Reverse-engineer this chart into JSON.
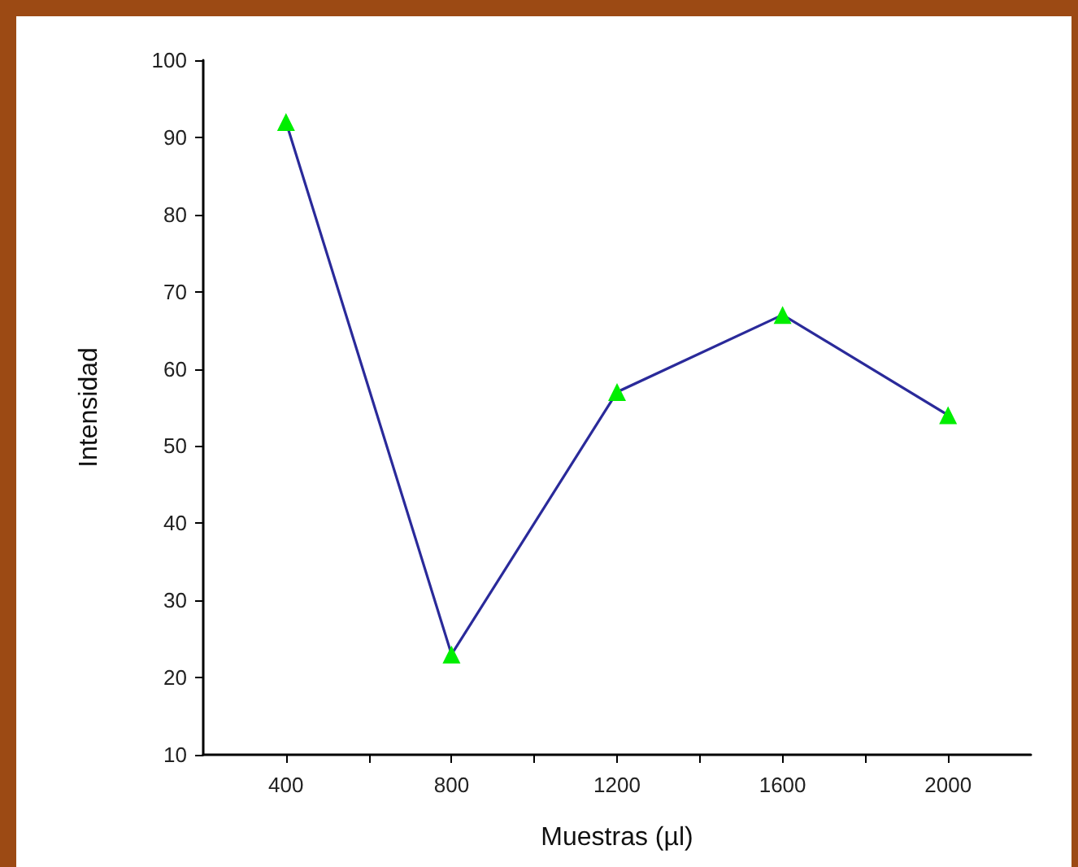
{
  "chart_data": {
    "type": "line",
    "xlabel": "Muestras (µl)",
    "ylabel": "Intensidad",
    "x": [
      400,
      800,
      1200,
      1600,
      2000
    ],
    "series": [
      {
        "color": "#2a2a9a",
        "colors": [
          "#00ee00",
          "#00ee00",
          "#00ee00",
          "#00ee00",
          "#00ee00"
        ],
        "values": [
          92,
          23,
          57,
          67,
          54
        ]
      }
    ],
    "xlim": [
      200,
      2200
    ],
    "xticks": [
      400,
      {
        "value": 600,
        "label": null
      },
      800,
      {
        "value": 1000,
        "label": null
      },
      1200,
      {
        "value": 1400,
        "label": null
      },
      1600,
      {
        "value": 1800,
        "label": null
      },
      2000
    ],
    "ylim": [
      10,
      100
    ],
    "yticks": [
      10,
      20,
      30,
      40,
      50,
      60,
      70,
      80,
      90,
      100
    ],
    "grid": false,
    "marker": "triangle",
    "line_style": "solid"
  }
}
